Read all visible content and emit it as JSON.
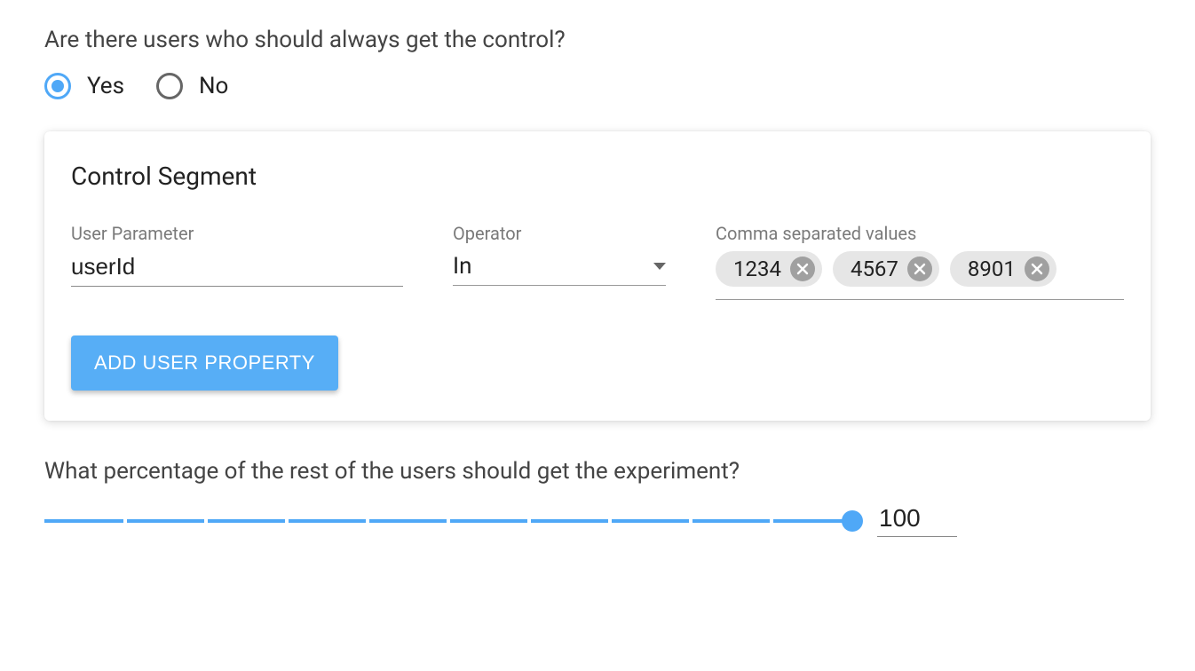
{
  "colors": {
    "accent": "#4fa8f7",
    "button_bg": "#57aef6",
    "chip_bg": "#e6e6e6",
    "chip_close_bg": "#a0a0a0",
    "text_muted": "#7a7a7a",
    "underline": "#8a8a8a"
  },
  "control_question": {
    "text": "Are there users who should always get the control?",
    "options": {
      "yes": "Yes",
      "no": "No"
    },
    "selected": "yes"
  },
  "control_segment": {
    "title": "Control Segment",
    "user_parameter": {
      "label": "User Parameter",
      "value": "userId"
    },
    "operator": {
      "label": "Operator",
      "value": "In"
    },
    "values": {
      "label": "Comma separated values",
      "chips": [
        "1234",
        "4567",
        "8901"
      ]
    },
    "add_button": "ADD USER PROPERTY"
  },
  "percentage": {
    "question": "What percentage of the rest of the users should get the experiment?",
    "value": 100,
    "min": 0,
    "max": 100,
    "tick_step": 10
  }
}
